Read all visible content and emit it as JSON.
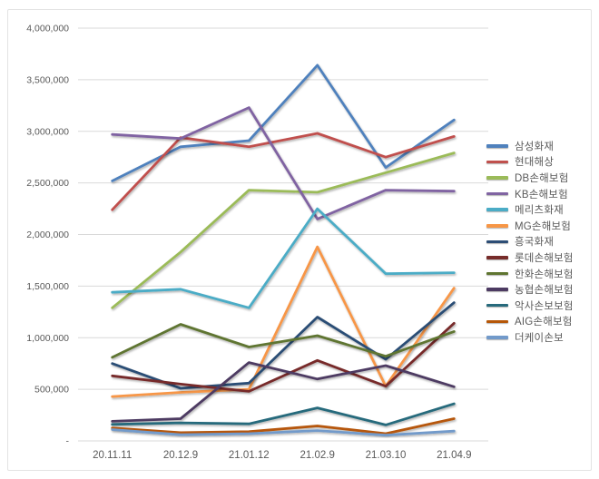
{
  "chart_data": {
    "type": "line",
    "title": "",
    "xlabel": "",
    "ylabel": "",
    "categories": [
      "20.11.11",
      "20.12.9",
      "21.01.12",
      "21.02.9",
      "21.03.10",
      "21.04.9"
    ],
    "series": [
      {
        "name": "삼성화재",
        "color": "#4F81BD",
        "values": [
          2520000,
          2850000,
          2910000,
          3640000,
          2650000,
          3110000
        ]
      },
      {
        "name": "현대해상",
        "color": "#C0504D",
        "values": [
          2240000,
          2940000,
          2850000,
          2980000,
          2750000,
          2950000
        ]
      },
      {
        "name": "DB손해보험",
        "color": "#9BBB59",
        "values": [
          1290000,
          1830000,
          2430000,
          2410000,
          2600000,
          2790000
        ]
      },
      {
        "name": "KB손해보험",
        "color": "#8064A2",
        "values": [
          2970000,
          2930000,
          3230000,
          2150000,
          2430000,
          2420000
        ]
      },
      {
        "name": "메리츠화재",
        "color": "#4BACC6",
        "values": [
          1440000,
          1470000,
          1290000,
          2250000,
          1620000,
          1630000
        ]
      },
      {
        "name": "MG손해보험",
        "color": "#F79646",
        "values": [
          430000,
          470000,
          500000,
          1880000,
          530000,
          1480000
        ]
      },
      {
        "name": "흥국화재",
        "color": "#2C4D75",
        "values": [
          750000,
          510000,
          560000,
          1200000,
          790000,
          1340000
        ]
      },
      {
        "name": "롯데손해보험",
        "color": "#772C2A",
        "values": [
          630000,
          550000,
          480000,
          780000,
          530000,
          1140000
        ]
      },
      {
        "name": "한화손해보험",
        "color": "#5F7530",
        "values": [
          810000,
          1130000,
          910000,
          1020000,
          820000,
          1060000
        ]
      },
      {
        "name": "농협손해보험",
        "color": "#4D3B62",
        "values": [
          190000,
          215000,
          760000,
          600000,
          730000,
          525000
        ]
      },
      {
        "name": "악사손보보험",
        "color": "#276A7C",
        "values": [
          160000,
          175000,
          165000,
          320000,
          155000,
          360000
        ]
      },
      {
        "name": "AIG손해보험",
        "color": "#B65708",
        "values": [
          125000,
          80000,
          90000,
          145000,
          70000,
          215000
        ]
      },
      {
        "name": "더케이손보",
        "color": "#729ACA",
        "values": [
          110000,
          60000,
          70000,
          100000,
          55000,
          95000
        ]
      }
    ],
    "ylim": [
      0,
      4000000
    ],
    "ytick_step": 500000,
    "ytick_labels": [
      "-",
      "500,000",
      "1,000,000",
      "1,500,000",
      "2,000,000",
      "2,500,000",
      "3,000,000",
      "3,500,000",
      "4,000,000"
    ],
    "grid": "horizontal",
    "legend_position": "right",
    "style": {
      "background": "#ffffff",
      "panel_border_color": "#e3e3e3",
      "gridline_color": "#d9d9d9",
      "axis_label_color": "#595959",
      "legend_text_color": "#595959"
    }
  }
}
